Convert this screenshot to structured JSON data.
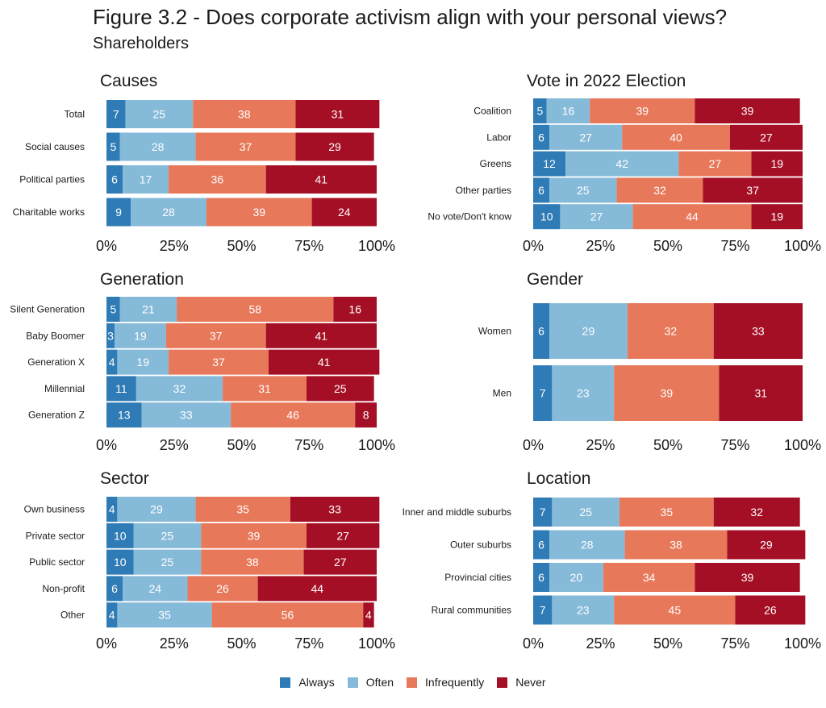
{
  "title": "Figure 3.2 - Does corporate activism align with your personal views?",
  "subtitle": "Shareholders",
  "chart_data": [
    {
      "type": "bar",
      "orientation": "horizontal",
      "stacked": true,
      "title": "Causes",
      "categories": [
        "Total",
        "Social causes",
        "Political parties",
        "Charitable works"
      ],
      "series": [
        {
          "name": "Always",
          "values": [
            7,
            5,
            6,
            9
          ]
        },
        {
          "name": "Often",
          "values": [
            25,
            28,
            17,
            28
          ]
        },
        {
          "name": "Infrequently",
          "values": [
            38,
            37,
            36,
            39
          ]
        },
        {
          "name": "Never",
          "values": [
            31,
            29,
            41,
            24
          ]
        }
      ],
      "xlim": [
        0,
        100
      ],
      "x_ticks": [
        "0%",
        "25%",
        "50%",
        "75%",
        "100%"
      ]
    },
    {
      "type": "bar",
      "orientation": "horizontal",
      "stacked": true,
      "title": "Vote in 2022 Election",
      "categories": [
        "Coalition",
        "Labor",
        "Greens",
        "Other parties",
        "No vote/Don't know"
      ],
      "series": [
        {
          "name": "Always",
          "values": [
            5,
            6,
            12,
            6,
            10
          ]
        },
        {
          "name": "Often",
          "values": [
            16,
            27,
            42,
            25,
            27
          ]
        },
        {
          "name": "Infrequently",
          "values": [
            39,
            40,
            27,
            32,
            44
          ]
        },
        {
          "name": "Never",
          "values": [
            39,
            27,
            19,
            37,
            19
          ]
        }
      ],
      "xlim": [
        0,
        100
      ],
      "x_ticks": [
        "0%",
        "25%",
        "50%",
        "75%",
        "100%"
      ]
    },
    {
      "type": "bar",
      "orientation": "horizontal",
      "stacked": true,
      "title": "Generation",
      "categories": [
        "Silent Generation",
        "Baby Boomer",
        "Generation X",
        "Millennial",
        "Generation Z"
      ],
      "series": [
        {
          "name": "Always",
          "values": [
            5,
            3,
            4,
            11,
            13
          ]
        },
        {
          "name": "Often",
          "values": [
            21,
            19,
            19,
            32,
            33
          ]
        },
        {
          "name": "Infrequently",
          "values": [
            58,
            37,
            37,
            31,
            46
          ]
        },
        {
          "name": "Never",
          "values": [
            16,
            41,
            41,
            25,
            8
          ]
        }
      ],
      "xlim": [
        0,
        100
      ],
      "x_ticks": [
        "0%",
        "25%",
        "50%",
        "75%",
        "100%"
      ]
    },
    {
      "type": "bar",
      "orientation": "horizontal",
      "stacked": true,
      "title": "Gender",
      "categories": [
        "Women",
        "Men"
      ],
      "series": [
        {
          "name": "Always",
          "values": [
            6,
            7
          ]
        },
        {
          "name": "Often",
          "values": [
            29,
            23
          ]
        },
        {
          "name": "Infrequently",
          "values": [
            32,
            39
          ]
        },
        {
          "name": "Never",
          "values": [
            33,
            31
          ]
        }
      ],
      "xlim": [
        0,
        100
      ],
      "x_ticks": [
        "0%",
        "25%",
        "50%",
        "75%",
        "100%"
      ]
    },
    {
      "type": "bar",
      "orientation": "horizontal",
      "stacked": true,
      "title": "Sector",
      "categories": [
        "Own business",
        "Private sector",
        "Public sector",
        "Non-profit",
        "Other"
      ],
      "series": [
        {
          "name": "Always",
          "values": [
            4,
            10,
            10,
            6,
            4
          ]
        },
        {
          "name": "Often",
          "values": [
            29,
            25,
            25,
            24,
            35
          ]
        },
        {
          "name": "Infrequently",
          "values": [
            35,
            39,
            38,
            26,
            56
          ]
        },
        {
          "name": "Never",
          "values": [
            33,
            27,
            27,
            44,
            4
          ]
        }
      ],
      "xlim": [
        0,
        100
      ],
      "x_ticks": [
        "0%",
        "25%",
        "50%",
        "75%",
        "100%"
      ]
    },
    {
      "type": "bar",
      "orientation": "horizontal",
      "stacked": true,
      "title": "Location",
      "categories": [
        "Inner and middle suburbs",
        "Outer suburbs",
        "Provincial cities",
        "Rural communities"
      ],
      "series": [
        {
          "name": "Always",
          "values": [
            7,
            6,
            6,
            7
          ]
        },
        {
          "name": "Often",
          "values": [
            25,
            28,
            20,
            23
          ]
        },
        {
          "name": "Infrequently",
          "values": [
            35,
            38,
            34,
            45
          ]
        },
        {
          "name": "Never",
          "values": [
            32,
            29,
            39,
            26
          ]
        }
      ],
      "xlim": [
        0,
        100
      ],
      "x_ticks": [
        "0%",
        "25%",
        "50%",
        "75%",
        "100%"
      ]
    }
  ],
  "legend": [
    {
      "label": "Always",
      "color": "#2f7bb5"
    },
    {
      "label": "Often",
      "color": "#86bad9"
    },
    {
      "label": "Infrequently",
      "color": "#e8785a"
    },
    {
      "label": "Never",
      "color": "#a50f25"
    }
  ],
  "legend_position": "bottom-center"
}
